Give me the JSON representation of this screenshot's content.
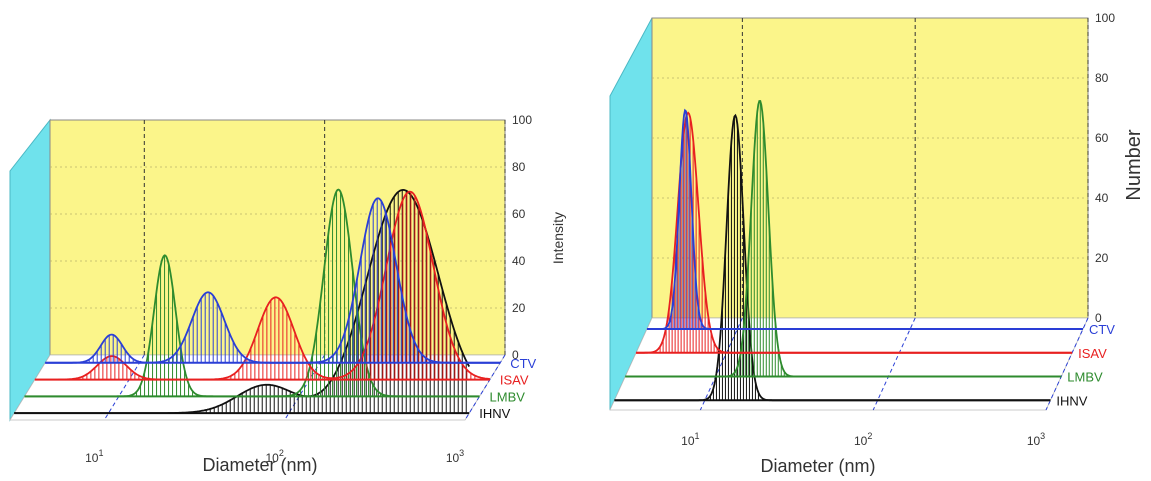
{
  "chart_data": [
    {
      "type": "area",
      "panel": "left",
      "ylabel": "Intensity",
      "xlabel": "Diameter (nm)",
      "x_scale": "log",
      "xlim": [
        3,
        1000
      ],
      "ylim": [
        0,
        100
      ],
      "y_ticks": [
        "100",
        "80",
        "60",
        "40",
        "20",
        "0"
      ],
      "x_ticks": [
        {
          "base": "10",
          "exp": "1"
        },
        {
          "base": "10",
          "exp": "2"
        },
        {
          "base": "10",
          "exp": "3"
        }
      ],
      "series": [
        {
          "name": "IHNV",
          "color": "#111111",
          "peaks": [
            {
              "x": 430,
              "y": 95,
              "w": 0.2
            },
            {
              "x": 75,
              "y": 12,
              "w": 0.16
            },
            {
              "x": 1300,
              "y": 4,
              "w": 0.1
            }
          ]
        },
        {
          "name": "LMBV",
          "color": "#2e8b2e",
          "peaks": [
            {
              "x": 18,
              "y": 60,
              "w": 0.06
            },
            {
              "x": 165,
              "y": 88,
              "w": 0.08
            }
          ]
        },
        {
          "name": "ISAV",
          "color": "#e82020",
          "peaks": [
            {
              "x": 8,
              "y": 10,
              "w": 0.08
            },
            {
              "x": 65,
              "y": 35,
              "w": 0.1
            },
            {
              "x": 360,
              "y": 80,
              "w": 0.13
            }
          ]
        },
        {
          "name": "CTV",
          "color": "#2a3fd6",
          "peaks": [
            {
              "x": 7,
              "y": 12,
              "w": 0.06
            },
            {
              "x": 24,
              "y": 30,
              "w": 0.09
            },
            {
              "x": 210,
              "y": 70,
              "w": 0.1
            }
          ]
        }
      ]
    },
    {
      "type": "area",
      "panel": "right",
      "ylabel": "Number",
      "xlabel": "Diameter (nm)",
      "x_scale": "log",
      "xlim": [
        3,
        1000
      ],
      "ylim": [
        0,
        100
      ],
      "y_ticks": [
        "100",
        "80",
        "60",
        "40",
        "20",
        "0"
      ],
      "x_ticks": [
        {
          "base": "10",
          "exp": "1"
        },
        {
          "base": "10",
          "exp": "2"
        },
        {
          "base": "10",
          "exp": "3"
        }
      ],
      "series": [
        {
          "name": "IHNV",
          "color": "#111111",
          "peaks": [
            {
              "x": 15,
              "y": 95,
              "w": 0.05
            }
          ]
        },
        {
          "name": "LMBV",
          "color": "#2e8b2e",
          "peaks": [
            {
              "x": 18,
              "y": 92,
              "w": 0.05
            }
          ]
        },
        {
          "name": "ISAV",
          "color": "#e82020",
          "peaks": [
            {
              "x": 6,
              "y": 80,
              "w": 0.06
            }
          ]
        },
        {
          "name": "CTV",
          "color": "#2a3fd6",
          "peaks": [
            {
              "x": 5,
              "y": 73,
              "w": 0.035
            }
          ]
        }
      ]
    }
  ]
}
